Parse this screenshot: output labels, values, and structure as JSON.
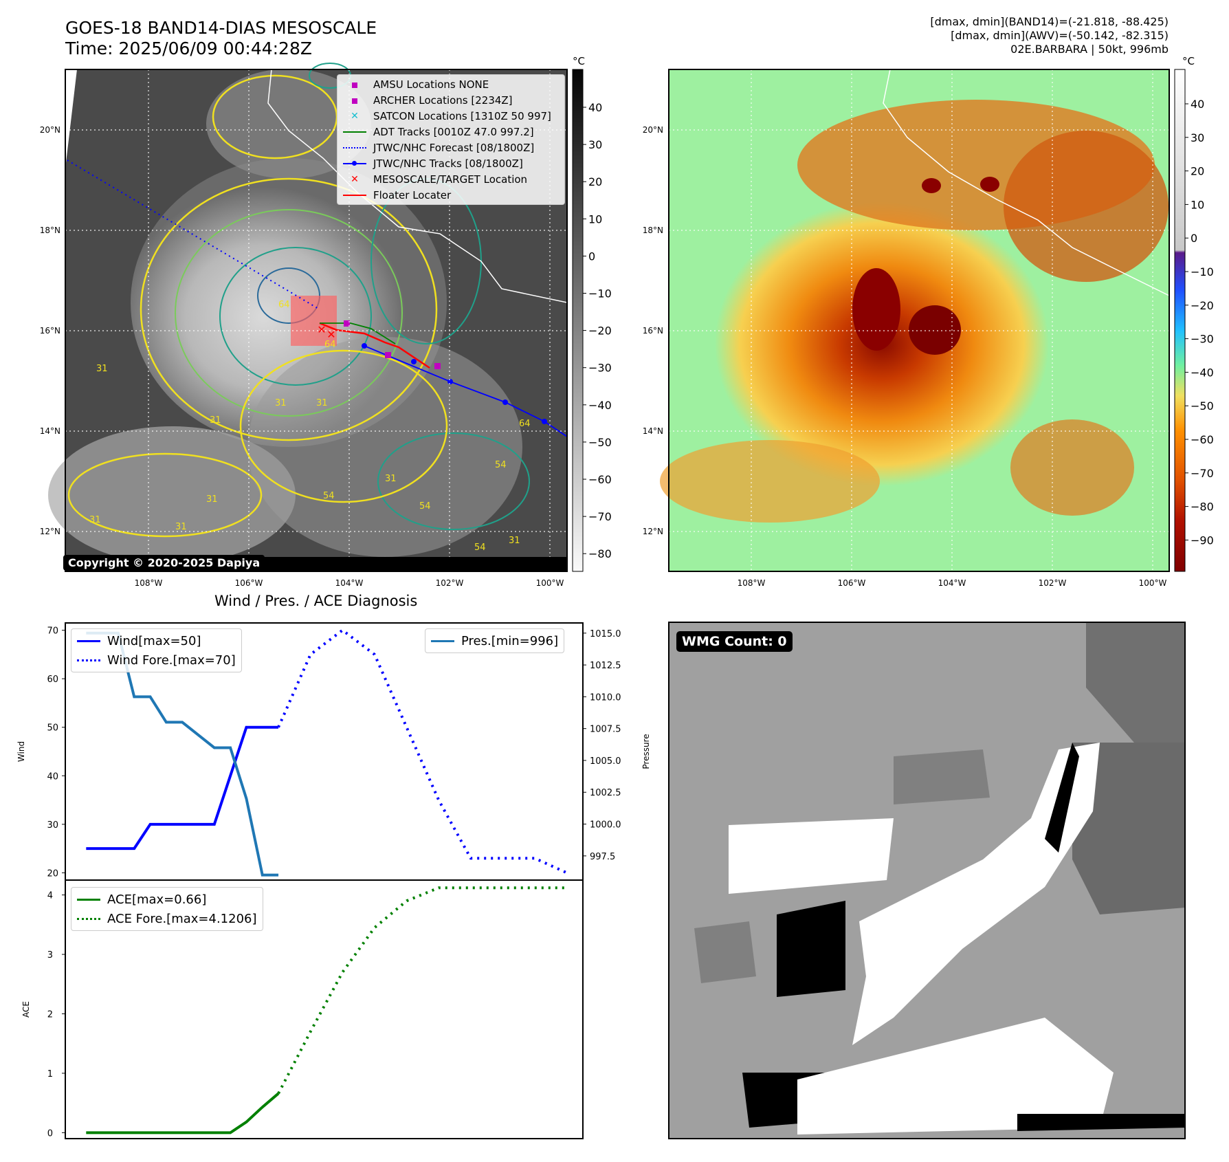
{
  "header": {
    "title_line1": "GOES-18 BAND14-DIAS MESOSCALE",
    "title_line2": "Time: 2025/06/09 00:44:28Z",
    "info_line1": "[dmax, dmin](BAND14)=(-21.818, -88.425)",
    "info_line2": "[dmax, dmin](AWV)=(-50.142, -82.315)",
    "info_line3": "02E.BARBARA | 50kt, 996mb"
  },
  "map": {
    "lat_labels": [
      "20°N",
      "18°N",
      "16°N",
      "14°N",
      "12°N"
    ],
    "lon_labels": [
      "108°W",
      "106°W",
      "104°W",
      "102°W",
      "100°W"
    ],
    "copyright": "Copyright © 2020-2025 Dapiya",
    "contour_labels": [
      "64",
      "64",
      "31",
      "31",
      "31",
      "54",
      "54",
      "64",
      "54",
      "31",
      "31",
      "31",
      "31",
      "31",
      "31",
      "54"
    ],
    "legend": [
      {
        "label": "AMSU Locations NONE",
        "color": "#c000c0",
        "marker": "square"
      },
      {
        "label": "ARCHER Locations [2234Z]",
        "color": "#c000c0",
        "marker": "square"
      },
      {
        "label": "SATCON Locations [1310Z 50 997]",
        "color": "#17becf",
        "marker": "x"
      },
      {
        "label": "ADT Tracks [0010Z 47.0 997.2]",
        "color": "#008000",
        "marker": "line"
      },
      {
        "label": "JTWC/NHC Forecast [08/1800Z]",
        "color": "#0000ff",
        "marker": "dotted"
      },
      {
        "label": "JTWC/NHC Tracks [08/1800Z]",
        "color": "#0000ff",
        "marker": "line-dot"
      },
      {
        "label": "MESOSCALE/TARGET Location",
        "color": "#ff0000",
        "marker": "x"
      },
      {
        "label": "Floater Locater",
        "color": "#ff0000",
        "marker": "line"
      }
    ]
  },
  "colorbar_gray": {
    "unit": "°C",
    "ticks": [
      "40",
      "30",
      "20",
      "10",
      "0",
      "−10",
      "−20",
      "−30",
      "−40",
      "−50",
      "−60",
      "−70",
      "−80"
    ]
  },
  "colorbar_color": {
    "unit": "°C",
    "ticks": [
      "40",
      "30",
      "20",
      "10",
      "0",
      "−10",
      "−20",
      "−30",
      "−40",
      "−50",
      "−60",
      "−70",
      "−80",
      "−90"
    ]
  },
  "diagnosis": {
    "title": "Wind / Pres. / ACE Diagnosis",
    "wmg_label": "WMG Count: 0"
  },
  "chart_data": [
    {
      "type": "line",
      "ylabel": "Wind",
      "y2label": "Pressure",
      "ylim": [
        18.5,
        71.5
      ],
      "y2lim": [
        995.6,
        1015.8
      ],
      "yticks": [
        "70",
        "60",
        "50",
        "40",
        "30",
        "20"
      ],
      "y2ticks": [
        "1015.0",
        "1012.5",
        "1010.0",
        "1007.5",
        "1005.0",
        "1002.5",
        "1000.0",
        "997.5"
      ],
      "legend_left": [
        "Wind[max=50]",
        "Wind Fore.[max=70]"
      ],
      "legend_right": [
        "Pres.[min=996]"
      ],
      "series": [
        {
          "name": "Wind[max=50]",
          "color": "#0000ff",
          "style": "solid",
          "x": [
            0,
            1,
            2,
            3,
            4,
            5,
            6,
            7,
            8,
            9,
            10,
            11,
            12
          ],
          "y": [
            25,
            25,
            25,
            25,
            30,
            30,
            30,
            30,
            30,
            40,
            50,
            50,
            50
          ]
        },
        {
          "name": "Wind Fore.[max=70]",
          "color": "#0000ff",
          "style": "dotted",
          "x": [
            12,
            14,
            16,
            18,
            20,
            22,
            24,
            26,
            28,
            30
          ],
          "y": [
            50,
            65,
            70,
            65,
            50,
            35,
            23,
            23,
            23,
            20
          ]
        },
        {
          "name": "Pres.[min=996]",
          "color": "#1f77b4",
          "style": "solid",
          "axis": "right",
          "x": [
            0,
            1,
            2,
            3,
            4,
            5,
            6,
            7,
            8,
            9,
            10,
            11,
            12
          ],
          "y": [
            1015,
            1015,
            1015,
            1010,
            1010,
            1008,
            1008,
            1007,
            1006,
            1006,
            1002,
            996,
            996
          ]
        }
      ],
      "xlim": [
        -1.3,
        31
      ]
    },
    {
      "type": "line",
      "ylabel": "ACE",
      "ylim": [
        -0.1,
        4.25
      ],
      "yticks": [
        "4",
        "3",
        "2",
        "1",
        "0"
      ],
      "legend": [
        "ACE[max=0.66]",
        "ACE Fore.[max=4.1206]"
      ],
      "series": [
        {
          "name": "ACE[max=0.66]",
          "color": "#008000",
          "style": "solid",
          "x": [
            0,
            3,
            6,
            9,
            10,
            11,
            12
          ],
          "y": [
            0,
            0,
            0,
            0,
            0.18,
            0.43,
            0.66
          ]
        },
        {
          "name": "ACE Fore.[max=4.1206]",
          "color": "#008000",
          "style": "dotted",
          "x": [
            12,
            14,
            16,
            18,
            20,
            22,
            24,
            26,
            28,
            30
          ],
          "y": [
            0.66,
            1.7,
            2.7,
            3.45,
            3.9,
            4.12,
            4.12,
            4.12,
            4.12,
            4.12
          ]
        }
      ],
      "xlim": [
        -1.3,
        31
      ]
    }
  ]
}
